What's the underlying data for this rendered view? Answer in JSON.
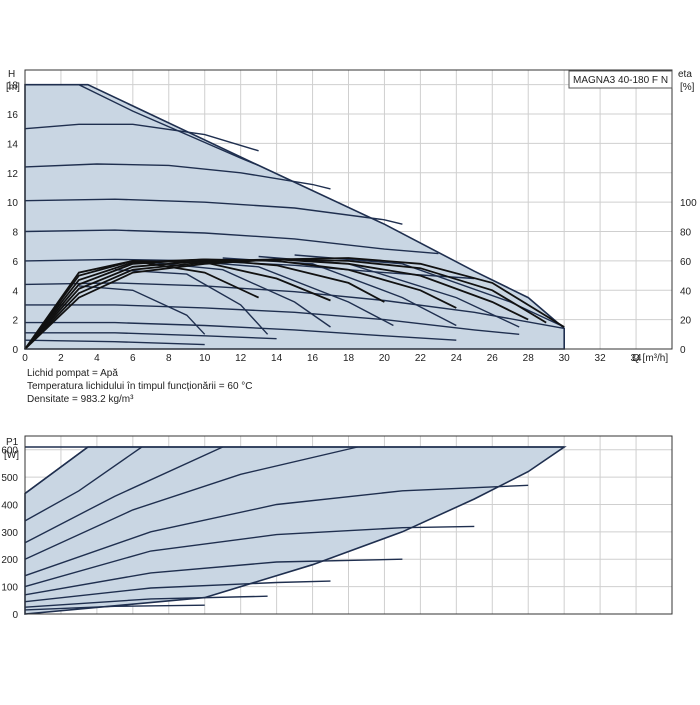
{
  "chart_data": [
    {
      "type": "line",
      "title": "MAGNA3 40-180 F N",
      "ylabel": "H\n[m]",
      "xlabel": "Q [m³/h]",
      "y2label": "eta\n[%]",
      "xlim": [
        0,
        36
      ],
      "ylim": [
        0,
        19
      ],
      "y2lim": [
        0,
        100
      ],
      "xticks": [
        0,
        2,
        4,
        6,
        8,
        10,
        12,
        14,
        16,
        18,
        20,
        22,
        24,
        26,
        28,
        30,
        32,
        34
      ],
      "yticks": [
        0,
        2,
        4,
        6,
        8,
        10,
        12,
        14,
        16,
        18
      ],
      "y2ticks": [
        0,
        20,
        40,
        60,
        80,
        100
      ],
      "grid": true,
      "envelope": {
        "x": [
          0,
          3.5,
          13,
          20,
          25,
          28,
          30,
          30,
          0
        ],
        "y": [
          18,
          18,
          12.5,
          8.5,
          5.3,
          3.5,
          1.4,
          0,
          0
        ]
      },
      "head_curves": [
        {
          "x": [
            0,
            3,
            6,
            9,
            12,
            13
          ],
          "y": [
            18,
            18,
            16.2,
            14.6,
            13,
            12.5
          ]
        },
        {
          "x": [
            0,
            3,
            6,
            10,
            13
          ],
          "y": [
            15,
            15.3,
            15.3,
            14.6,
            13.5
          ]
        },
        {
          "x": [
            0,
            4,
            8,
            12,
            16,
            17
          ],
          "y": [
            12.4,
            12.6,
            12.5,
            12,
            11.2,
            10.9
          ]
        },
        {
          "x": [
            0,
            5,
            10,
            15,
            20,
            21
          ],
          "y": [
            10.1,
            10.2,
            10,
            9.6,
            8.8,
            8.5
          ]
        },
        {
          "x": [
            0,
            5,
            10,
            15,
            20,
            23
          ],
          "y": [
            8,
            8.1,
            7.9,
            7.5,
            6.8,
            6.5
          ]
        },
        {
          "x": [
            0,
            5,
            10,
            15,
            20,
            25
          ],
          "y": [
            6,
            6.1,
            6,
            5.7,
            5.2,
            4.8
          ]
        },
        {
          "x": [
            0,
            5,
            10,
            15,
            20,
            25,
            30
          ],
          "y": [
            4.4,
            4.5,
            4.3,
            3.9,
            3.3,
            2.5,
            1.4
          ]
        },
        {
          "x": [
            0,
            5,
            10,
            15,
            20,
            25,
            27.5
          ],
          "y": [
            3,
            3,
            2.8,
            2.5,
            2,
            1.3,
            1
          ]
        },
        {
          "x": [
            0,
            5,
            10,
            15,
            20,
            24
          ],
          "y": [
            1.8,
            1.8,
            1.6,
            1.3,
            0.9,
            0.6
          ]
        },
        {
          "x": [
            0,
            5,
            10,
            14
          ],
          "y": [
            1.1,
            1.1,
            0.9,
            0.7
          ]
        },
        {
          "x": [
            0,
            5,
            10
          ],
          "y": [
            0.6,
            0.5,
            0.3
          ]
        }
      ],
      "system_curves": [
        {
          "x": [
            3,
            6,
            9,
            10
          ],
          "y": [
            4.3,
            4,
            2.3,
            1
          ]
        },
        {
          "x": [
            5,
            9,
            12,
            13.5
          ],
          "y": [
            5.4,
            5.1,
            3,
            1
          ]
        },
        {
          "x": [
            7,
            11,
            15,
            17
          ],
          "y": [
            5.9,
            5.4,
            3.2,
            1.5
          ]
        },
        {
          "x": [
            9,
            13,
            18,
            20.5
          ],
          "y": [
            6,
            5.6,
            3.2,
            1.6
          ]
        },
        {
          "x": [
            11,
            16,
            21,
            24
          ],
          "y": [
            6.2,
            5.8,
            3.5,
            1.6
          ]
        },
        {
          "x": [
            13,
            18,
            24,
            27.5
          ],
          "y": [
            6.3,
            5.8,
            3.5,
            1.5
          ]
        },
        {
          "x": [
            15,
            21,
            27,
            30
          ],
          "y": [
            6.4,
            5.8,
            3.2,
            1.5
          ]
        }
      ],
      "eta_curves": [
        {
          "x": [
            0,
            3,
            6,
            10,
            14,
            18,
            22,
            26,
            30
          ],
          "y": [
            0,
            35,
            52,
            58,
            61,
            62,
            58,
            45,
            15
          ]
        },
        {
          "x": [
            0,
            3,
            6,
            10,
            14,
            18,
            22,
            26,
            29
          ],
          "y": [
            0,
            38,
            54,
            59,
            61,
            60,
            55,
            40,
            18
          ]
        },
        {
          "x": [
            0,
            3,
            6,
            10,
            14,
            18,
            22,
            26,
            28
          ],
          "y": [
            0,
            41,
            56,
            60,
            61,
            58,
            50,
            32,
            20
          ]
        },
        {
          "x": [
            0,
            3,
            6,
            10,
            14,
            18,
            22,
            24
          ],
          "y": [
            0,
            44,
            58,
            61,
            60,
            54,
            40,
            28
          ]
        },
        {
          "x": [
            0,
            3,
            6,
            10,
            14,
            18,
            20
          ],
          "y": [
            0,
            47,
            59,
            61,
            57,
            45,
            32
          ]
        },
        {
          "x": [
            0,
            3,
            6,
            10,
            14,
            17
          ],
          "y": [
            0,
            50,
            60,
            59,
            48,
            33
          ]
        },
        {
          "x": [
            0,
            3,
            6,
            10,
            13
          ],
          "y": [
            0,
            52,
            60,
            52,
            35
          ]
        }
      ],
      "annotations": [
        "Lichid pompat = Apă",
        "Temperatura lichidului în timpul funcționării = 60 °C",
        "Densitate = 983.2 kg/m³"
      ]
    },
    {
      "type": "line",
      "ylabel": "P1\n[W]",
      "xlim": [
        0,
        36
      ],
      "ylim": [
        0,
        650
      ],
      "yticks": [
        0,
        100,
        200,
        300,
        400,
        500,
        600
      ],
      "grid": true,
      "envelope": {
        "x": [
          0,
          3.5,
          30,
          28,
          25,
          21,
          16,
          10,
          0
        ],
        "y": [
          440,
          610,
          610,
          520,
          420,
          300,
          180,
          60,
          0
        ]
      },
      "power_curves": [
        {
          "x": [
            0,
            3.5
          ],
          "y": [
            440,
            610
          ]
        },
        {
          "x": [
            0,
            3,
            6.5
          ],
          "y": [
            340,
            450,
            610
          ]
        },
        {
          "x": [
            0,
            5,
            11
          ],
          "y": [
            260,
            430,
            610
          ]
        },
        {
          "x": [
            0,
            6,
            12,
            18.5
          ],
          "y": [
            200,
            380,
            510,
            610
          ]
        },
        {
          "x": [
            0,
            3.5,
            30
          ],
          "y": [
            610,
            610,
            610
          ]
        },
        {
          "x": [
            0,
            7,
            14,
            21,
            28
          ],
          "y": [
            140,
            300,
            400,
            450,
            470
          ]
        },
        {
          "x": [
            0,
            7,
            14,
            21,
            25
          ],
          "y": [
            100,
            230,
            290,
            315,
            320
          ]
        },
        {
          "x": [
            0,
            7,
            14,
            21
          ],
          "y": [
            70,
            150,
            190,
            200
          ]
        },
        {
          "x": [
            0,
            7,
            14,
            17
          ],
          "y": [
            45,
            95,
            115,
            120
          ]
        },
        {
          "x": [
            0,
            7,
            13.5
          ],
          "y": [
            25,
            55,
            65
          ]
        },
        {
          "x": [
            0,
            5,
            10
          ],
          "y": [
            15,
            28,
            32
          ]
        }
      ]
    }
  ]
}
